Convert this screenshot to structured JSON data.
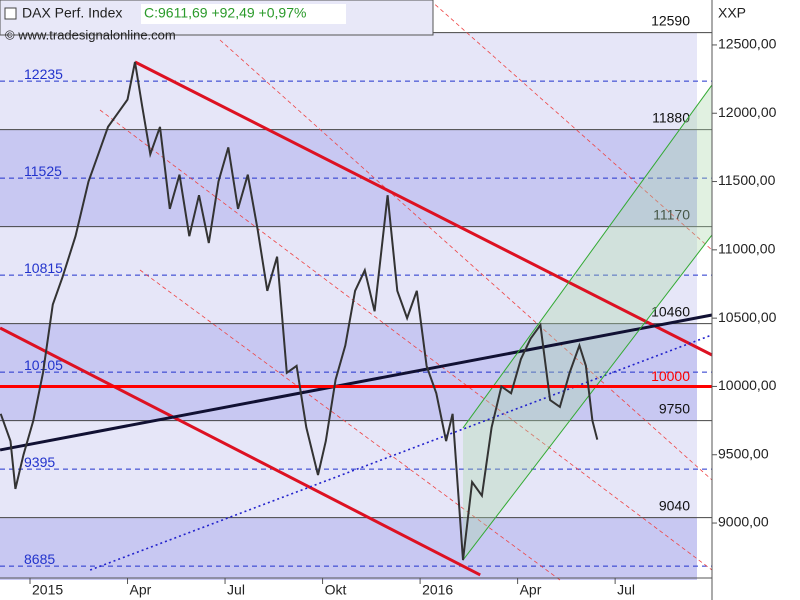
{
  "chart_data": {
    "type": "line",
    "title": "DAX Perf. Index",
    "subtitle": "C:9611,69 +92,49 +0,97%",
    "source": "© www.tradesignalonline.com",
    "corner_label": "XXP",
    "xlim": [
      -0.923,
      20.98
    ],
    "xticks": [
      {
        "value": 0,
        "label": "2015"
      },
      {
        "value": 3,
        "label": "Apr"
      },
      {
        "value": 6,
        "label": "Jul"
      },
      {
        "value": 9,
        "label": "Okt"
      },
      {
        "value": 12,
        "label": "2016"
      },
      {
        "value": 15,
        "label": "Apr"
      },
      {
        "value": 18,
        "label": "Jul"
      }
    ],
    "ylim": [
      8583,
      12829
    ],
    "yticks": [
      {
        "value": 9000,
        "label": "9000,00"
      },
      {
        "value": 9500,
        "label": "9500,00"
      },
      {
        "value": 10000,
        "label": "10000,00"
      },
      {
        "value": 10500,
        "label": "10500,00"
      },
      {
        "value": 11000,
        "label": "11000,00"
      },
      {
        "value": 11500,
        "label": "11500,00"
      },
      {
        "value": 12000,
        "label": "12000,00"
      },
      {
        "value": 12500,
        "label": "12500,00"
      }
    ],
    "series": [
      {
        "name": "DAX Perf. Index",
        "color": "#333333",
        "x": [
          -0.9,
          -0.6,
          -0.45,
          -0.2,
          0.1,
          0.4,
          0.7,
          1.0,
          1.4,
          1.8,
          2.1,
          2.4,
          2.7,
          3.0,
          3.23,
          3.45,
          3.7,
          4.0,
          4.3,
          4.6,
          4.9,
          5.2,
          5.5,
          5.8,
          6.1,
          6.4,
          6.7,
          7.0,
          7.3,
          7.6,
          7.9,
          8.2,
          8.5,
          8.86,
          9.1,
          9.4,
          9.7,
          10.0,
          10.3,
          10.6,
          11.0,
          11.3,
          11.6,
          11.9,
          12.2,
          12.5,
          12.8,
          13.0,
          13.32,
          13.6,
          13.9,
          14.2,
          14.5,
          14.8,
          15.1,
          15.4,
          15.7,
          16.0,
          16.3,
          16.6,
          16.9,
          17.1,
          17.3,
          17.45
        ],
        "values": [
          9800,
          9600,
          9250,
          9500,
          9750,
          10100,
          10600,
          10800,
          11100,
          11500,
          11700,
          11900,
          12000,
          12100,
          12375,
          12050,
          11700,
          11900,
          11300,
          11550,
          11100,
          11400,
          11050,
          11500,
          11750,
          11300,
          11550,
          11150,
          10700,
          10950,
          10100,
          10150,
          9700,
          9352,
          9600,
          10050,
          10300,
          10700,
          10850,
          10550,
          11400,
          10700,
          10500,
          10700,
          10150,
          9950,
          9600,
          9800,
          8729,
          9300,
          9200,
          9700,
          10000,
          9950,
          10200,
          10350,
          10450,
          9900,
          9850,
          10100,
          10300,
          10150,
          9750,
          9611
        ]
      }
    ],
    "levels": [
      12590,
      11880,
      11170,
      10460,
      9750,
      9040
    ],
    "mid_levels": [
      12235,
      11525,
      10815,
      10105,
      9395,
      8685
    ],
    "key_level": {
      "value": 10000,
      "label": "10000",
      "color": "#ff0000"
    },
    "trendlines": [
      {
        "color": "#dd1122",
        "points": [
          [
            3.23,
            12375
          ],
          [
            20.98,
            10230
          ]
        ]
      },
      {
        "color": "#dd1122",
        "points": [
          [
            -0.92,
            10428
          ],
          [
            13.85,
            8620
          ]
        ]
      },
      {
        "color": "#111133",
        "points": [
          [
            -0.92,
            9535
          ],
          [
            20.98,
            10523
          ]
        ]
      },
      {
        "color": "#2222cc",
        "points": [
          [
            1.85,
            8656
          ],
          [
            20.98,
            10377
          ]
        ]
      },
      {
        "color": "#33aa33",
        "points": [
          [
            13.32,
            8729
          ],
          [
            20.98,
            11109
          ]
        ]
      },
      {
        "color": "#33aa33",
        "points": [
          [
            13.32,
            9696
          ],
          [
            20.98,
            12207
          ]
        ]
      }
    ]
  }
}
